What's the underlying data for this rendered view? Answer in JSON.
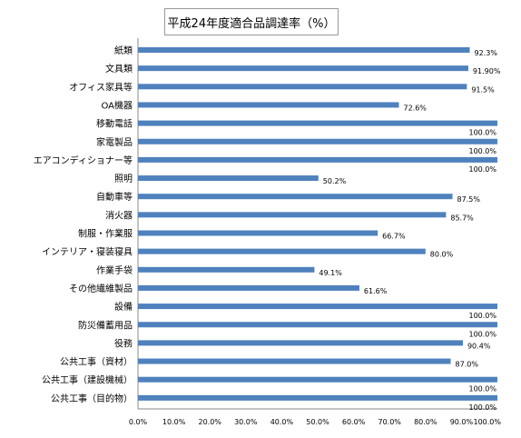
{
  "chart_data": {
    "type": "bar",
    "orientation": "horizontal",
    "title": "平成24年度適合品調達率（%）",
    "categories": [
      "紙類",
      "文具類",
      "オフィス家具等",
      "OA機器",
      "移動電話",
      "家電製品",
      "エアコンディショナー等",
      "照明",
      "自動車等",
      "消火器",
      "制服・作業服",
      "インテリア・寝装寝具",
      "作業手袋",
      "その他繊維製品",
      "設備",
      "防災備蓄用品",
      "役務",
      "公共工事（資材）",
      "公共工事（建設機械）",
      "公共工事（目的物）"
    ],
    "values": [
      92.3,
      91.9,
      91.5,
      72.6,
      100.0,
      100.0,
      100.0,
      50.2,
      87.5,
      85.7,
      66.7,
      80.0,
      49.1,
      61.6,
      100.0,
      100.0,
      90.4,
      87.0,
      100.0,
      100.0
    ],
    "data_labels": [
      "92.3%",
      "91.90%",
      "91.5%",
      "72.6%",
      "100.0%",
      "100.0%",
      "100.0%",
      "50.2%",
      "87.5%",
      "85.7%",
      "66.7%",
      "80.0%",
      "49.1%",
      "61.6%",
      "100.0%",
      "100.0%",
      "90.4%",
      "87.0%",
      "100.0%",
      "100.0%"
    ],
    "x_ticks": [
      "0.0%",
      "10.0%",
      "20.0%",
      "30.0%",
      "40.0%",
      "50.0%",
      "60.0%",
      "70.0%",
      "80.0%",
      "90.0%",
      "100.0%"
    ],
    "xlim": [
      0,
      100
    ],
    "grid": false,
    "legend": "none",
    "bar_color": "#4f81bd"
  }
}
